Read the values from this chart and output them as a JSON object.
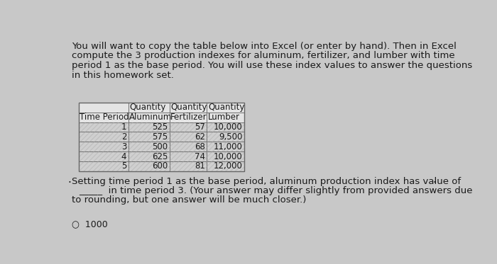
{
  "background_color": "#c8c8c8",
  "intro_text_lines": [
    "You will want to copy the table below into Excel (or enter by hand). Then in Excel",
    "compute the 3 production indexes for aluminum, fertilizer, and lumber with time",
    "period 1 as the base period. You will use these index values to answer the questions",
    "in this homework set."
  ],
  "table_header_row1": [
    "",
    "Quantity",
    "Quantity",
    "Quantity"
  ],
  "table_header_row2": [
    "Time Period",
    "Aluminum",
    "Fertilizer",
    "Lumber"
  ],
  "table_data": [
    [
      "1",
      "525",
      "57",
      "10,000"
    ],
    [
      "2",
      "575",
      "62",
      "9,500"
    ],
    [
      "3",
      "500",
      "68",
      "11,000"
    ],
    [
      "4",
      "625",
      "74",
      "10,000"
    ],
    [
      "5",
      "600",
      "81",
      "12,000"
    ]
  ],
  "footer_lines": [
    "Setting time period 1 as the base period, aluminum production index has value of",
    "_____  in time period 3. (Your answer may differ slightly from provided answers due",
    "to rounding, but one answer will be much closer.)"
  ],
  "bottom_hint": "1000",
  "intro_fontsize": 9.5,
  "table_fontsize": 8.5,
  "footer_fontsize": 9.5,
  "text_color": "#1a1a1a",
  "table_border_color": "#666666",
  "cell_stripe_color": "#b8b8b8",
  "cell_white_color": "#e8e8e8"
}
